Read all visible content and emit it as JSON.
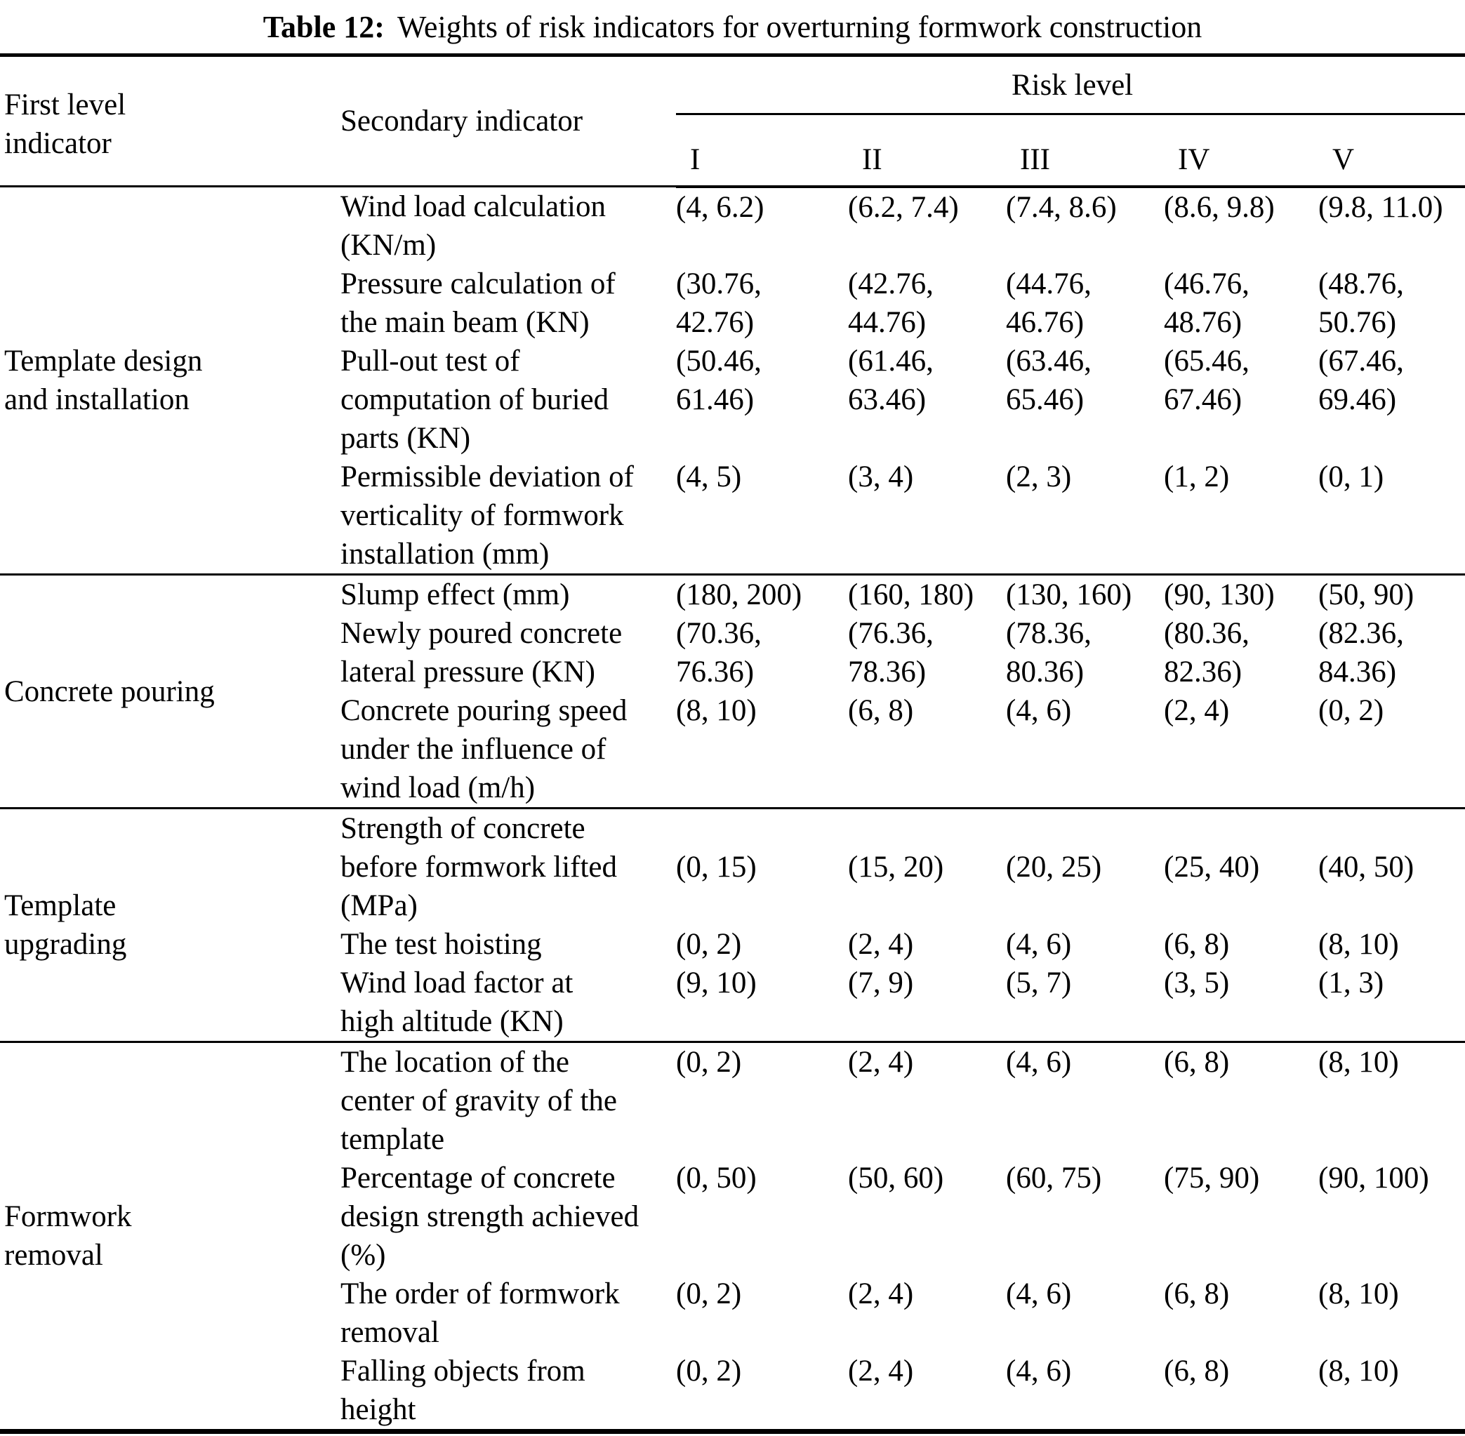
{
  "title": {
    "label": "Table 12:",
    "text": "Weights of risk indicators for overturning formwork construction"
  },
  "header": {
    "col1_lines": [
      "First level",
      "indicator"
    ],
    "col2": "Secondary indicator",
    "risk_group": "Risk level",
    "risk_levels": [
      "I",
      "II",
      "III",
      "IV",
      "V"
    ]
  },
  "sections": [
    {
      "first_level_lines": [
        "Template design",
        "and installation"
      ],
      "rows": [
        {
          "secondary_lines": [
            "Wind load calculation",
            "(KN/m)"
          ],
          "values": [
            [
              "(4, 6.2)"
            ],
            [
              "(6.2, 7.4)"
            ],
            [
              "(7.4, 8.6)"
            ],
            [
              "(8.6, 9.8)"
            ],
            [
              "(9.8, 11.0)"
            ]
          ]
        },
        {
          "secondary_lines": [
            "Pressure calculation of",
            "the main beam (KN)"
          ],
          "values": [
            [
              "(30.76,",
              "42.76)"
            ],
            [
              "(42.76,",
              "44.76)"
            ],
            [
              "(44.76,",
              "46.76)"
            ],
            [
              "(46.76,",
              "48.76)"
            ],
            [
              "(48.76,",
              "50.76)"
            ]
          ]
        },
        {
          "secondary_lines": [
            "Pull-out test of",
            "computation of buried",
            "parts (KN)"
          ],
          "values": [
            [
              "(50.46,",
              "61.46)"
            ],
            [
              "(61.46,",
              "63.46)"
            ],
            [
              "(63.46,",
              "65.46)"
            ],
            [
              "(65.46,",
              "67.46)"
            ],
            [
              "(67.46,",
              "69.46)"
            ]
          ]
        },
        {
          "secondary_lines": [
            "Permissible deviation of",
            "verticality of formwork",
            "installation (mm)"
          ],
          "values": [
            [
              "(4, 5)"
            ],
            [
              "(3, 4)"
            ],
            [
              "(2, 3)"
            ],
            [
              "(1, 2)"
            ],
            [
              "(0, 1)"
            ]
          ]
        }
      ]
    },
    {
      "first_level_lines": [
        "Concrete pouring"
      ],
      "rows": [
        {
          "secondary_lines": [
            "Slump effect (mm)"
          ],
          "values": [
            [
              "(180, 200)"
            ],
            [
              "(160, 180)"
            ],
            [
              "(130, 160)"
            ],
            [
              "(90, 130)"
            ],
            [
              "(50, 90)"
            ]
          ]
        },
        {
          "secondary_lines": [
            "Newly poured concrete",
            "lateral pressure (KN)"
          ],
          "values": [
            [
              "(70.36,",
              "76.36)"
            ],
            [
              "(76.36,",
              "78.36)"
            ],
            [
              "(78.36,",
              "80.36)"
            ],
            [
              "(80.36,",
              "82.36)"
            ],
            [
              "(82.36,",
              "84.36)"
            ]
          ]
        },
        {
          "secondary_lines": [
            "Concrete pouring speed",
            "under the influence of",
            "wind load (m/h)"
          ],
          "values": [
            [
              "(8, 10)"
            ],
            [
              "(6, 8)"
            ],
            [
              "(4, 6)"
            ],
            [
              "(2, 4)"
            ],
            [
              "(0, 2)"
            ]
          ]
        }
      ]
    },
    {
      "first_level_lines": [
        "Template",
        "upgrading"
      ],
      "rows": [
        {
          "secondary_lines": [
            "Strength of concrete",
            "before formwork lifted",
            "(MPa)"
          ],
          "value_offset_lines": 1,
          "values": [
            [
              "(0, 15)"
            ],
            [
              "(15, 20)"
            ],
            [
              "(20, 25)"
            ],
            [
              "(25, 40)"
            ],
            [
              "(40, 50)"
            ]
          ]
        },
        {
          "secondary_lines": [
            "The test hoisting"
          ],
          "values": [
            [
              "(0, 2)"
            ],
            [
              "(2, 4)"
            ],
            [
              "(4, 6)"
            ],
            [
              "(6, 8)"
            ],
            [
              "(8, 10)"
            ]
          ]
        },
        {
          "secondary_lines": [
            "Wind load factor at",
            "high altitude (KN)"
          ],
          "values": [
            [
              "(9, 10)"
            ],
            [
              "(7, 9)"
            ],
            [
              "(5, 7)"
            ],
            [
              "(3, 5)"
            ],
            [
              "(1, 3)"
            ]
          ]
        }
      ]
    },
    {
      "first_level_lines": [
        "Formwork",
        "removal"
      ],
      "rows": [
        {
          "secondary_lines": [
            "The location of the",
            "center of gravity of the",
            "template"
          ],
          "values": [
            [
              "(0, 2)"
            ],
            [
              "(2, 4)"
            ],
            [
              "(4, 6)"
            ],
            [
              "(6, 8)"
            ],
            [
              "(8, 10)"
            ]
          ]
        },
        {
          "secondary_lines": [
            "Percentage of concrete",
            "design strength achieved",
            "(%)"
          ],
          "values": [
            [
              "(0, 50)"
            ],
            [
              "(50, 60)"
            ],
            [
              "(60, 75)"
            ],
            [
              "(75, 90)"
            ],
            [
              "(90, 100)"
            ]
          ]
        },
        {
          "secondary_lines": [
            "The order of formwork",
            "removal"
          ],
          "values": [
            [
              "(0, 2)"
            ],
            [
              "(2, 4)"
            ],
            [
              "(4, 6)"
            ],
            [
              "(6, 8)"
            ],
            [
              "(8, 10)"
            ]
          ]
        },
        {
          "secondary_lines": [
            "Falling objects from",
            "height"
          ],
          "values": [
            [
              "(0, 2)"
            ],
            [
              "(2, 4)"
            ],
            [
              "(4, 6)"
            ],
            [
              "(6, 8)"
            ],
            [
              "(8, 10)"
            ]
          ]
        }
      ]
    }
  ]
}
